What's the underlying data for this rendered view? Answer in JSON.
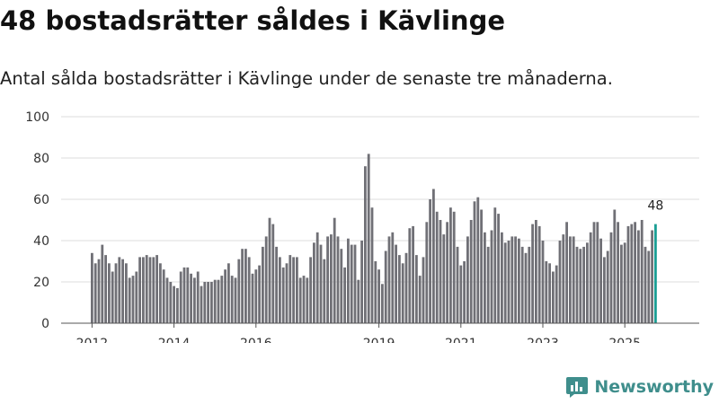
{
  "title": "48 bostadsrätter såldes i Kävlinge",
  "subtitle": "Antal sålda bostadsrätter i Kävlinge under de senaste tre månaderna.",
  "brand": "Newsworthy",
  "colors": {
    "bar": "#707076",
    "highlight": "#1b9e94",
    "brand": "#3f8e8c"
  },
  "chart_data": {
    "type": "bar",
    "title": "48 bostadsrätter såldes i Kävlinge",
    "xlabel": "",
    "ylabel": "",
    "ylim": [
      0,
      100
    ],
    "yticks": [
      0,
      20,
      40,
      60,
      80,
      100
    ],
    "xticks": [
      "2012",
      "2014",
      "2016",
      "2019",
      "2021",
      "2023",
      "2025"
    ],
    "grid": true,
    "start": "2012-01",
    "end": "2025-10",
    "highlight_last": true,
    "data_label": "48",
    "values": [
      34,
      29,
      31,
      38,
      33,
      29,
      25,
      29,
      32,
      31,
      29,
      22,
      23,
      25,
      32,
      32,
      33,
      32,
      32,
      33,
      29,
      26,
      22,
      20,
      18,
      17,
      25,
      27,
      27,
      24,
      22,
      25,
      18,
      20,
      20,
      20,
      21,
      21,
      23,
      26,
      29,
      23,
      22,
      31,
      36,
      36,
      32,
      24,
      26,
      28,
      37,
      42,
      51,
      48,
      37,
      32,
      27,
      29,
      33,
      32,
      32,
      22,
      23,
      22,
      32,
      39,
      44,
      38,
      31,
      42,
      43,
      51,
      42,
      36,
      27,
      41,
      38,
      38,
      21,
      40,
      76,
      82,
      56,
      30,
      26,
      19,
      35,
      42,
      44,
      38,
      33,
      29,
      34,
      46,
      47,
      33,
      23,
      32,
      49,
      60,
      65,
      54,
      50,
      43,
      49,
      56,
      54,
      37,
      28,
      30,
      42,
      50,
      59,
      61,
      55,
      44,
      37,
      45,
      56,
      53,
      44,
      39,
      40,
      42,
      42,
      41,
      37,
      34,
      37,
      48,
      50,
      47,
      40,
      30,
      29,
      25,
      28,
      40,
      43,
      49,
      42,
      42,
      37,
      36,
      37,
      39,
      44,
      49,
      49,
      41,
      32,
      35,
      44,
      55,
      49,
      38,
      39,
      47,
      48,
      49,
      45,
      50,
      37,
      35,
      45,
      48
    ]
  }
}
